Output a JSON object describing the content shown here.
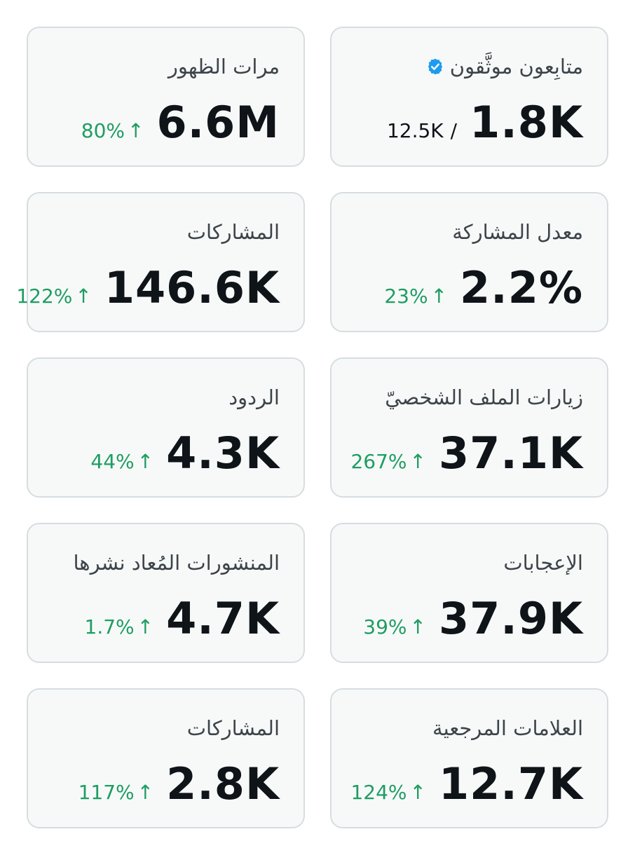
{
  "colors": {
    "card_bg": "#f7f9f9",
    "card_border": "#d6dde1",
    "positive": "#1f9d62",
    "verified": "#1d9bf0"
  },
  "cards": [
    {
      "title": "متابِعون موثَّقون",
      "icon": "verified-badge-icon",
      "value": "1.8K",
      "total": "12.5K",
      "slash": "/"
    },
    {
      "title": "مرات الظهور",
      "value": "6.6M",
      "change": "80%",
      "arrow": "↑"
    },
    {
      "title": "معدل المشاركة",
      "value": "2.2%",
      "change": "23%",
      "arrow": "↑"
    },
    {
      "title": "المشاركات",
      "value": "146.6K",
      "change": "122%",
      "arrow": "↑"
    },
    {
      "title": "زيارات الملف الشخصيّ",
      "value": "37.1K",
      "change": "267%",
      "arrow": "↑"
    },
    {
      "title": "الردود",
      "value": "4.3K",
      "change": "44%",
      "arrow": "↑"
    },
    {
      "title": "الإعجابات",
      "value": "37.9K",
      "change": "39%",
      "arrow": "↑"
    },
    {
      "title": "المنشورات المُعاد نشرها",
      "value": "4.7K",
      "change": "1.7%",
      "arrow": "↑"
    },
    {
      "title": "العلامات المرجعية",
      "value": "12.7K",
      "change": "124%",
      "arrow": "↑"
    },
    {
      "title": "المشاركات",
      "value": "2.8K",
      "change": "117%",
      "arrow": "↑"
    }
  ]
}
